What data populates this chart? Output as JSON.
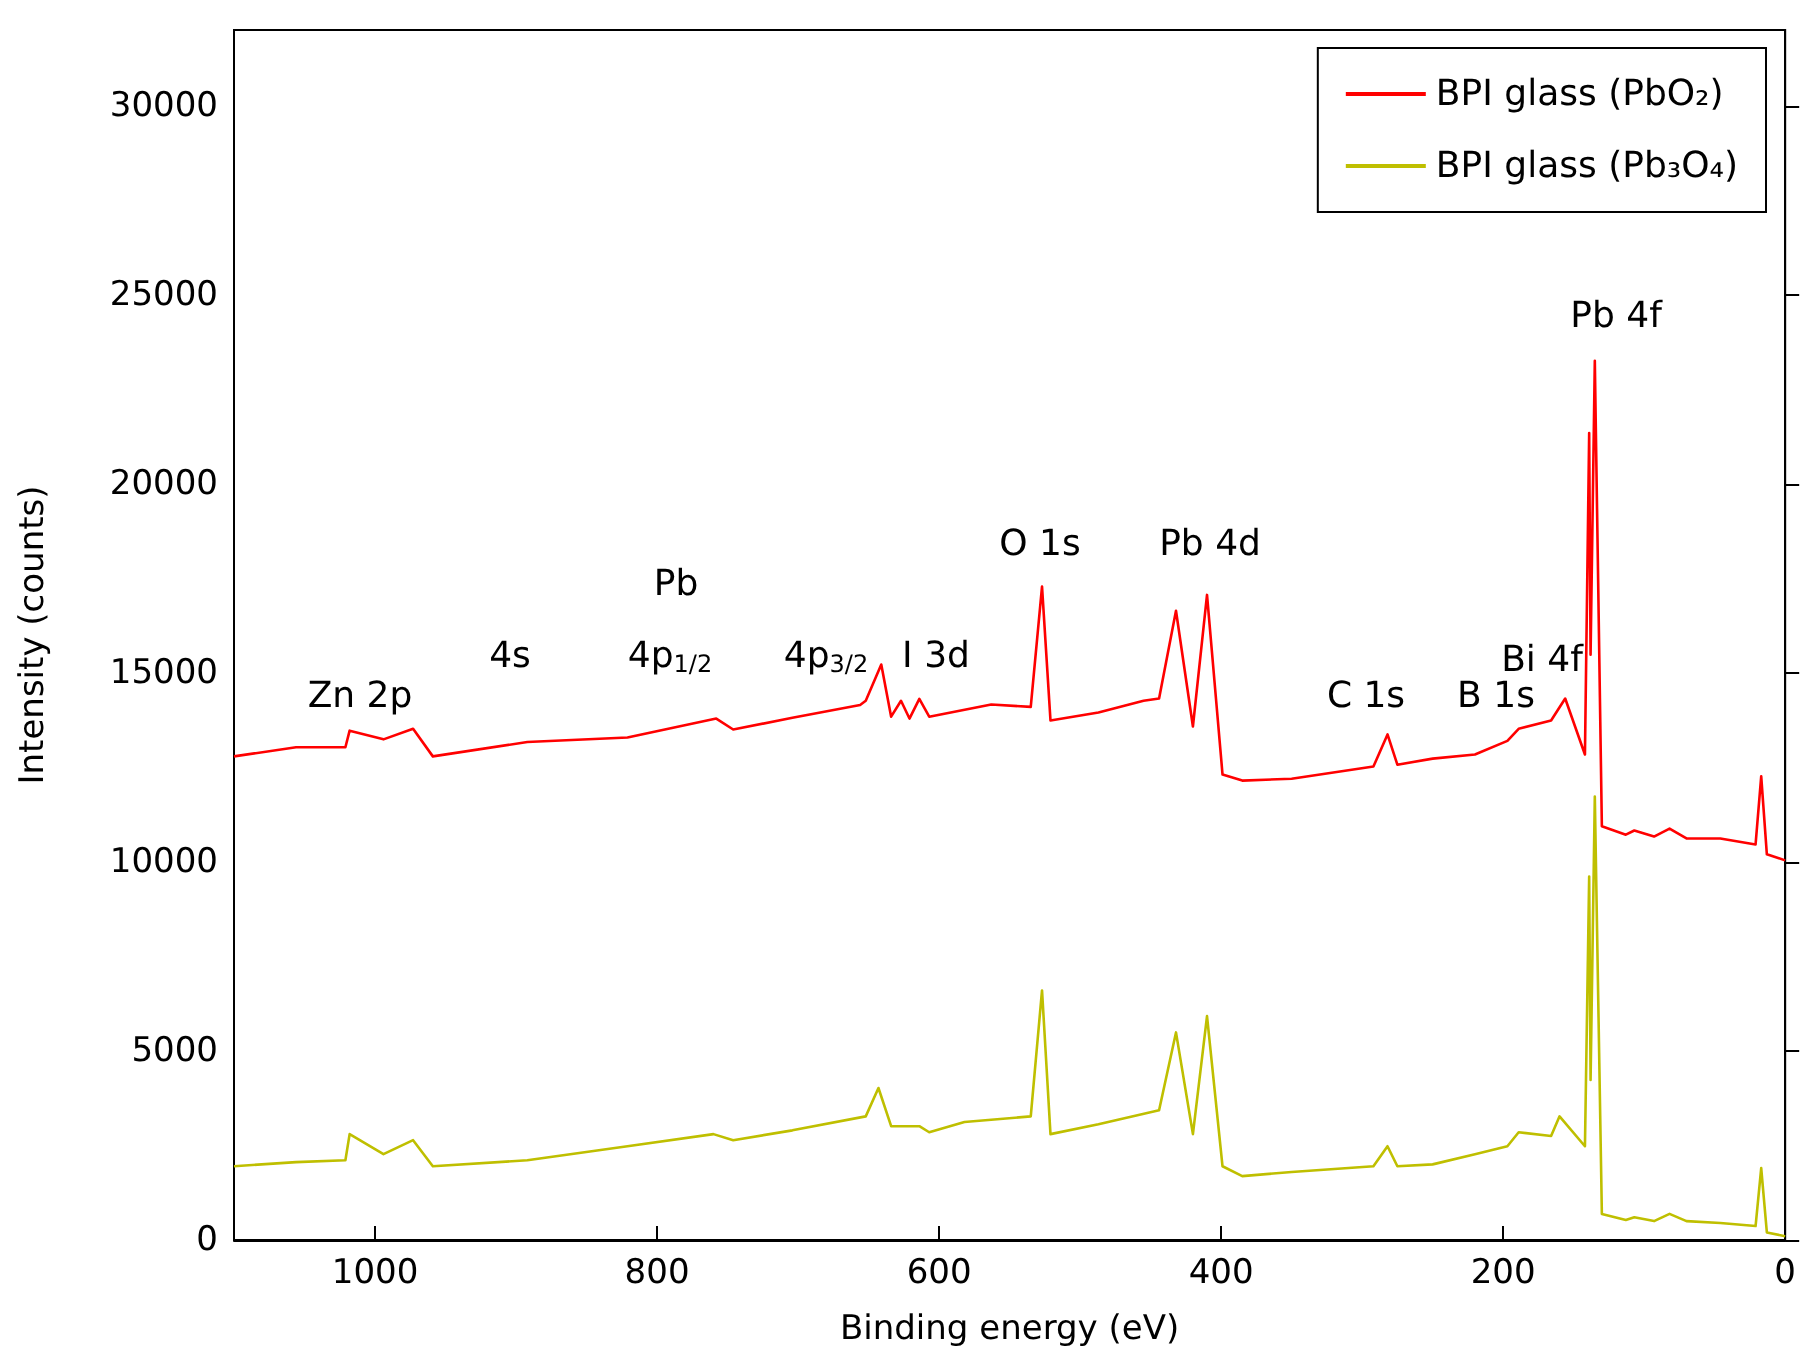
{
  "chart_data": {
    "type": "line",
    "xlabel": "Binding energy (eV)",
    "ylabel": "Intensity (counts)",
    "xlim": [
      1100,
      0
    ],
    "xticks": [
      1000,
      800,
      600,
      400,
      200,
      0
    ],
    "ylim": [
      0,
      32000
    ],
    "yticks": [
      0,
      5000,
      10000,
      15000,
      20000,
      25000,
      30000
    ],
    "grid": false,
    "legend": "top right",
    "marker": "none",
    "line_style": "solid",
    "series": [
      {
        "name": "BPI glass (PbO₂)",
        "color": "#ff0000",
        "x": [
          1100,
          1056,
          1021,
          1018,
          994,
          973,
          959,
          892,
          821,
          758,
          746,
          704,
          656,
          652,
          641,
          634,
          627,
          621,
          614,
          607,
          563,
          535,
          527,
          521,
          487,
          455,
          444,
          432,
          420,
          410,
          399,
          385,
          350,
          292,
          282,
          275,
          250,
          220,
          197,
          189,
          166,
          156,
          142,
          139,
          138,
          135,
          130,
          113,
          107,
          93,
          82,
          70,
          46,
          21,
          17,
          13,
          0
        ],
        "values": [
          12790,
          13030,
          13030,
          13470,
          13240,
          13520,
          12790,
          13170,
          13290,
          13790,
          13500,
          13810,
          14150,
          14260,
          15220,
          13840,
          14260,
          13790,
          14310,
          13840,
          14160,
          14100,
          17280,
          13740,
          13950,
          14260,
          14320,
          16640,
          13580,
          17060,
          12310,
          12150,
          12200,
          12520,
          13370,
          12570,
          12730,
          12840,
          13200,
          13520,
          13740,
          14320,
          12840,
          21340,
          15480,
          23250,
          10940,
          10720,
          10830,
          10670,
          10880,
          10620,
          10620,
          10460,
          12260,
          10200,
          10040
        ]
      },
      {
        "name": "BPI glass (Pb₃O₄)",
        "color": "#bfbf00",
        "x": [
          1100,
          1056,
          1021,
          1018,
          994,
          973,
          959,
          892,
          821,
          760,
          746,
          704,
          652,
          643,
          634,
          614,
          607,
          582,
          535,
          527,
          521,
          487,
          444,
          432,
          420,
          410,
          399,
          385,
          350,
          292,
          282,
          275,
          250,
          220,
          197,
          189,
          166,
          160,
          142,
          139,
          138,
          135,
          130,
          113,
          107,
          93,
          82,
          70,
          46,
          21,
          17,
          13,
          0
        ],
        "values": [
          1950,
          2060,
          2110,
          2800,
          2270,
          2640,
          1950,
          2110,
          2480,
          2800,
          2640,
          2900,
          3270,
          4020,
          3010,
          3010,
          2850,
          3120,
          3270,
          6600,
          2800,
          3060,
          3430,
          5490,
          2800,
          5920,
          1950,
          1690,
          1800,
          1950,
          2480,
          1950,
          2000,
          2270,
          2480,
          2850,
          2750,
          3270,
          2480,
          9610,
          4230,
          11730,
          690,
          530,
          600,
          500,
          690,
          500,
          450,
          370,
          1900,
          200,
          100
        ]
      }
    ],
    "annotations": [
      "Zn 2p",
      "4s",
      "Pb",
      "4p$_{1/2}$",
      "4p$_{3/2}$",
      "I 3d",
      "O 1s",
      "Pb 4d",
      "C 1s",
      "B 1s",
      "Bi 4f",
      "Pb 4f"
    ]
  }
}
